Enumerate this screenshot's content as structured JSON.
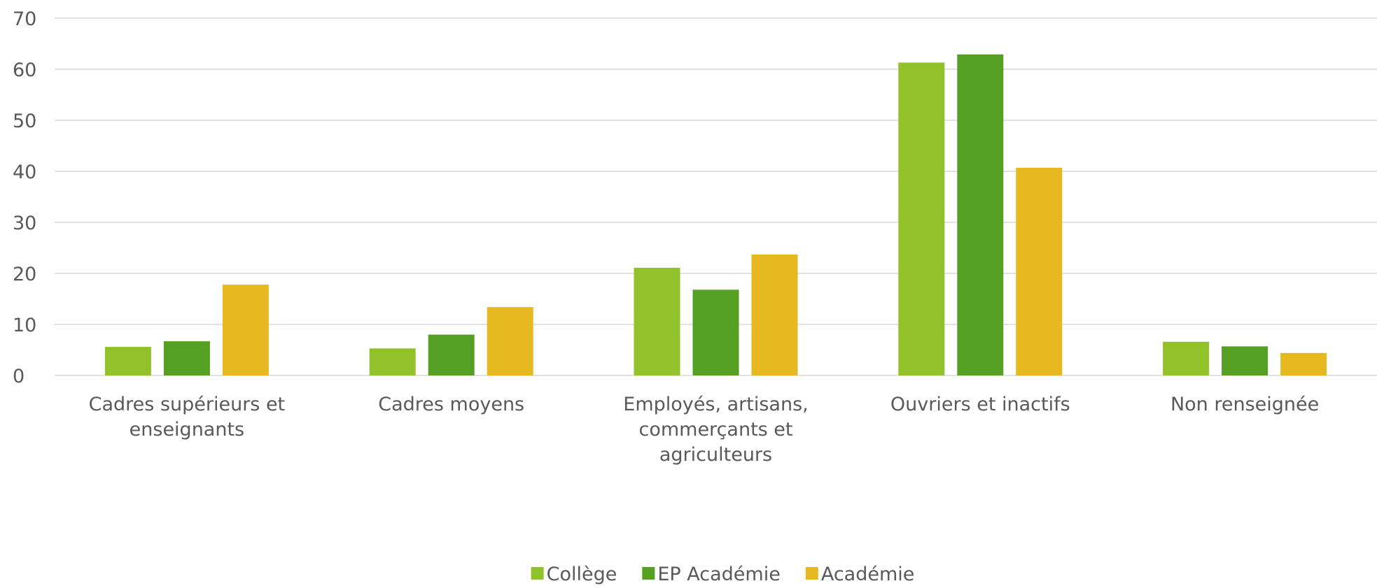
{
  "chart_data": {
    "type": "bar",
    "categories": [
      "Cadres supérieurs et enseignants",
      "Cadres moyens",
      "Employés, artisans, commerçants et agriculteurs",
      "Ouvriers et inactifs",
      "Non renseignée"
    ],
    "series": [
      {
        "name": "Collège",
        "color": "#92c229",
        "values": [
          5.6,
          5.3,
          21.1,
          61.3,
          6.6
        ]
      },
      {
        "name": "EP Académie",
        "color": "#55a022",
        "values": [
          6.7,
          8.0,
          16.8,
          62.9,
          5.7
        ]
      },
      {
        "name": "Académie",
        "color": "#e6b920",
        "values": [
          17.8,
          13.4,
          23.7,
          40.7,
          4.4
        ]
      }
    ],
    "ylim": [
      0,
      70
    ],
    "yticks": [
      0,
      10,
      20,
      30,
      40,
      50,
      60,
      70
    ],
    "grid": true,
    "legend": "bottom"
  }
}
